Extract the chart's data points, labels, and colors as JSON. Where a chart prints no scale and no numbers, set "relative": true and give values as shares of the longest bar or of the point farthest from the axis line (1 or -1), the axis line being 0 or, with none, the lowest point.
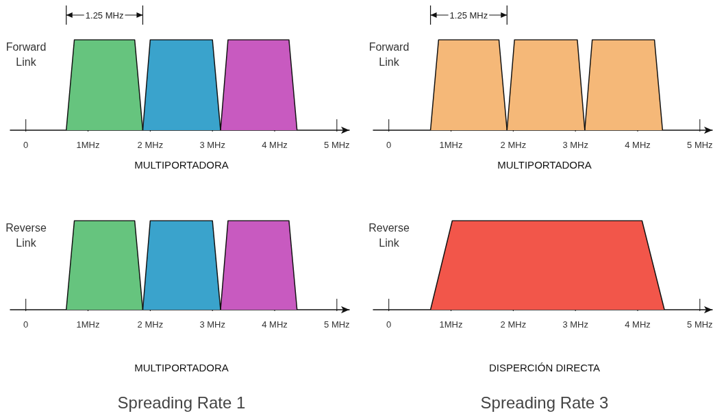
{
  "chart_data": [
    {
      "type": "area",
      "relative": true,
      "ylabel": "Forward Link",
      "xlabel": "MULTIPORTADORA",
      "annotations": [
        "1.25 MHz"
      ],
      "xlim": [
        -0.25,
        5.2
      ],
      "xticks": [
        {
          "value": 0,
          "label": "0"
        },
        {
          "value": 1,
          "label": "1MHz"
        },
        {
          "value": 2,
          "label": "2 MHz"
        },
        {
          "value": 3,
          "label": "3 MHz"
        },
        {
          "value": 4,
          "label": "4 MHz"
        },
        {
          "value": 5,
          "label": "5 MHz"
        }
      ],
      "series": [
        {
          "color": "#66c47e",
          "x": [
            0.65,
            0.78,
            1.75,
            1.88
          ],
          "values": [
            0,
            1,
            1,
            0
          ]
        },
        {
          "color": "#3aa3cc",
          "x": [
            1.88,
            2.0,
            3.0,
            3.13
          ],
          "values": [
            0,
            1,
            1,
            0
          ]
        },
        {
          "color": "#c85ac0",
          "x": [
            3.13,
            3.25,
            4.23,
            4.36
          ],
          "values": [
            0,
            1,
            1,
            0
          ]
        }
      ]
    },
    {
      "type": "area",
      "relative": true,
      "ylabel": "Forward Link",
      "xlabel": "MULTIPORTADORA",
      "annotations": [
        "1.25 MHz"
      ],
      "xlim": [
        -0.25,
        5.2
      ],
      "xticks": [
        {
          "value": 0,
          "label": "0"
        },
        {
          "value": 1,
          "label": "1MHz"
        },
        {
          "value": 2,
          "label": "2 MHz"
        },
        {
          "value": 3,
          "label": "3 MHz"
        },
        {
          "value": 4,
          "label": "4 MHz"
        },
        {
          "value": 5,
          "label": "5 MHz"
        }
      ],
      "series": [
        {
          "color": "#f5b878",
          "x": [
            0.67,
            0.8,
            1.77,
            1.9
          ],
          "values": [
            0,
            1,
            1,
            0
          ]
        },
        {
          "color": "#f5b878",
          "x": [
            1.9,
            2.02,
            3.03,
            3.15
          ],
          "values": [
            0,
            1,
            1,
            0
          ]
        },
        {
          "color": "#f5b878",
          "x": [
            3.15,
            3.27,
            4.27,
            4.4
          ],
          "values": [
            0,
            1,
            1,
            0
          ]
        }
      ]
    },
    {
      "type": "area",
      "relative": true,
      "ylabel": "Reverse Link",
      "xlabel": "MULTIPORTADORA",
      "annotations": [
        "Spreading Rate 1"
      ],
      "xlim": [
        -0.25,
        5.2
      ],
      "xticks": [
        {
          "value": 0,
          "label": "0"
        },
        {
          "value": 1,
          "label": "1MHz"
        },
        {
          "value": 2,
          "label": "2 MHz"
        },
        {
          "value": 3,
          "label": "3 MHz"
        },
        {
          "value": 4,
          "label": "4 MHz"
        },
        {
          "value": 5,
          "label": "5 MHz"
        }
      ],
      "series": [
        {
          "color": "#66c47e",
          "x": [
            0.65,
            0.78,
            1.75,
            1.88
          ],
          "values": [
            0,
            1,
            1,
            0
          ]
        },
        {
          "color": "#3aa3cc",
          "x": [
            1.88,
            2.0,
            3.0,
            3.13
          ],
          "values": [
            0,
            1,
            1,
            0
          ]
        },
        {
          "color": "#c85ac0",
          "x": [
            3.13,
            3.25,
            4.23,
            4.36
          ],
          "values": [
            0,
            1,
            1,
            0
          ]
        }
      ]
    },
    {
      "type": "area",
      "relative": true,
      "ylabel": "Reverse Link",
      "xlabel": "DISPERCIÓN DIRECTA",
      "annotations": [
        "Spreading Rate 3"
      ],
      "xlim": [
        -0.25,
        5.2
      ],
      "xticks": [
        {
          "value": 0,
          "label": "0"
        },
        {
          "value": 1,
          "label": "1MHz"
        },
        {
          "value": 2,
          "label": "2 MHz"
        },
        {
          "value": 3,
          "label": "3 MHz"
        },
        {
          "value": 4,
          "label": "4 MHz"
        },
        {
          "value": 5,
          "label": "5 MHz"
        }
      ],
      "series": [
        {
          "color": "#f2564a",
          "x": [
            0.67,
            1.02,
            4.07,
            4.43
          ],
          "values": [
            0,
            1,
            1,
            0
          ]
        }
      ]
    }
  ]
}
